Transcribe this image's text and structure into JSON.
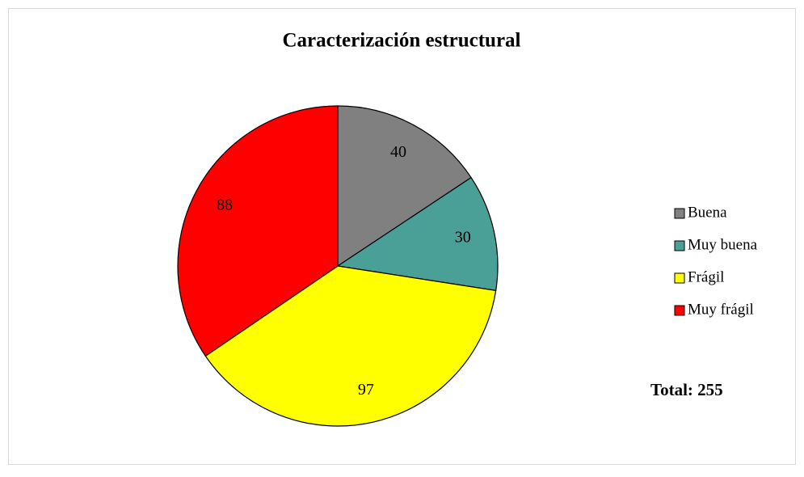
{
  "chart_data": {
    "type": "pie",
    "title": "Caracterización estructural",
    "categories": [
      "Buena",
      "Muy buena",
      "Frágil",
      "Muy frágil"
    ],
    "values": [
      40,
      30,
      97,
      88
    ],
    "colors": [
      "#808080",
      "#4a9f96",
      "#ffff00",
      "#ff0000"
    ],
    "legend": "right",
    "annotation": "Total: 255"
  }
}
